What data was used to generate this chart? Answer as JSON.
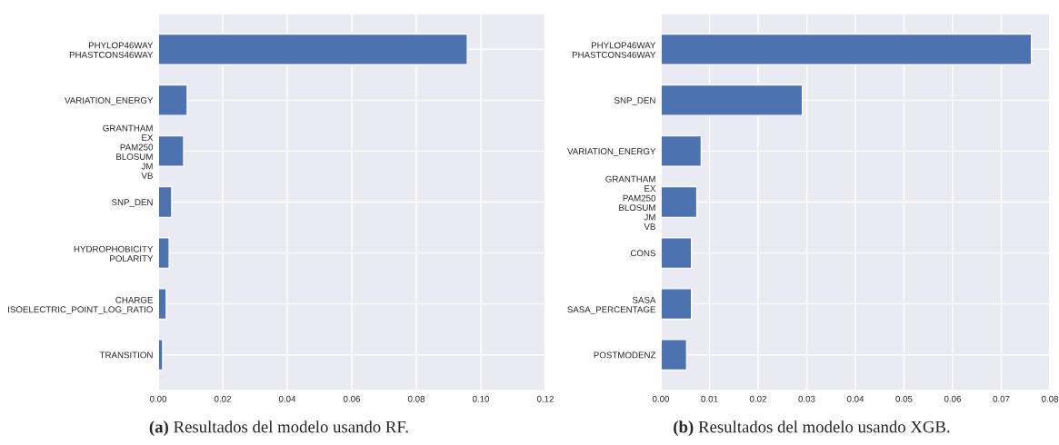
{
  "chart_data": [
    {
      "type": "bar",
      "orientation": "horizontal",
      "title": "(a) Resultados del modelo usando RF.",
      "grid": true,
      "color": "#4c72b0",
      "categories": [
        "PHYLOP46WAY\nPHASTCONS46WAY",
        "VARIATION_ENERGY",
        "GRANTHAM\nEX\nPAM250\nBLOSUM\nJM\nVB",
        "SNP_DEN",
        "HYDROPHOBICITY\nPOLARITY",
        "CHARGE\nISOELECTRIC_POINT_LOG_RATIO",
        "TRANSITION"
      ],
      "values": [
        0.0958,
        0.009,
        0.0079,
        0.0042,
        0.0034,
        0.0025,
        0.0014
      ],
      "xlim": [
        0,
        0.12
      ],
      "xticks": [
        {
          "value": 0,
          "label": "0.00"
        },
        {
          "value": 0.02,
          "label": "0.02"
        },
        {
          "value": 0.04,
          "label": "0.04"
        },
        {
          "value": 0.06,
          "label": "0.06"
        },
        {
          "value": 0.08,
          "label": "0.08"
        },
        {
          "value": 0.1,
          "label": "0.10"
        },
        {
          "value": 0.12,
          "label": "0.12"
        }
      ]
    },
    {
      "type": "bar",
      "orientation": "horizontal",
      "title": "(b) Resultados del modelo usando XGB.",
      "grid": true,
      "color": "#4c72b0",
      "categories": [
        "PHYLOP46WAY\nPHASTCONS46WAY",
        "SNP_DEN",
        "VARIATION_ENERGY",
        "GRANTHAM\nEX\nPAM250\nBLOSUM\nJM\nVB",
        "CONS",
        "SASA\nSASA_PERCENTAGE",
        "POSTMODENZ"
      ],
      "values": [
        0.0762,
        0.0291,
        0.0083,
        0.0074,
        0.0063,
        0.0063,
        0.0053
      ],
      "xlim": [
        0,
        0.08
      ],
      "xticks": [
        {
          "value": 0,
          "label": "0.00"
        },
        {
          "value": 0.01,
          "label": "0.01"
        },
        {
          "value": 0.02,
          "label": "0.02"
        },
        {
          "value": 0.03,
          "label": "0.03"
        },
        {
          "value": 0.04,
          "label": "0.04"
        },
        {
          "value": 0.05,
          "label": "0.05"
        },
        {
          "value": 0.06,
          "label": "0.06"
        },
        {
          "value": 0.07,
          "label": "0.07"
        },
        {
          "value": 0.08,
          "label": "0.08"
        }
      ]
    }
  ]
}
